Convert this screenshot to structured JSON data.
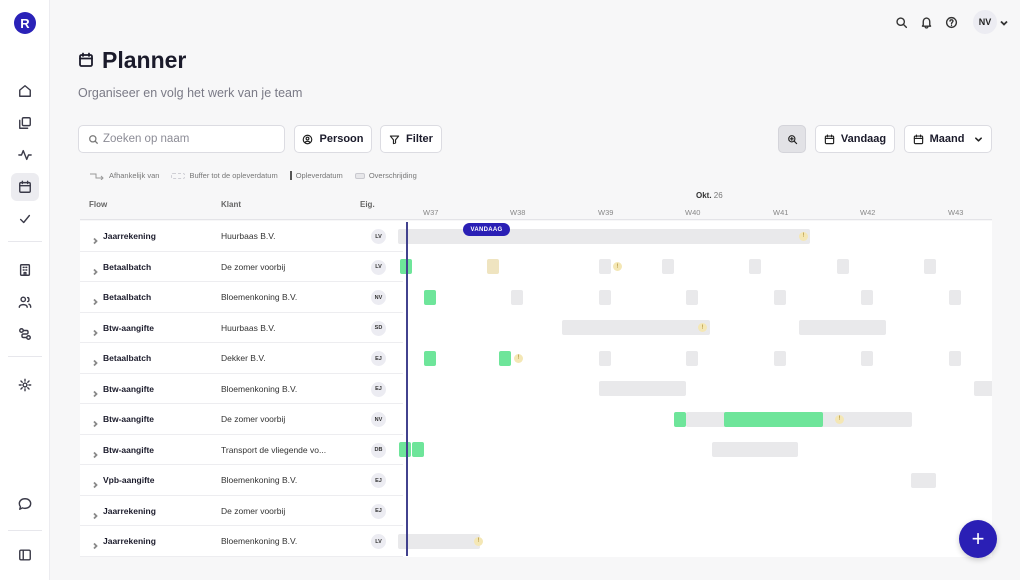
{
  "app": {
    "logo_letter": "R",
    "brand_color": "#2a1fb5"
  },
  "sidebar": {
    "items": [
      {
        "icon": "home-icon"
      },
      {
        "icon": "copy-icon"
      },
      {
        "icon": "activity-icon"
      },
      {
        "icon": "calendar-icon",
        "active": true
      },
      {
        "icon": "check-icon"
      },
      {
        "icon": "building-icon"
      },
      {
        "icon": "users-icon"
      },
      {
        "icon": "workflow-icon"
      },
      {
        "icon": "settings-icon"
      },
      {
        "icon": "chat-icon"
      },
      {
        "icon": "panel-icon"
      }
    ]
  },
  "topbar": {
    "user_initials": "NV"
  },
  "page": {
    "title": "Planner",
    "subtitle": "Organiseer en volg het werk van je team"
  },
  "toolbar": {
    "search_placeholder": "Zoeken op naam",
    "person_label": "Persoon",
    "filter_label": "Filter",
    "today_label": "Vandaag",
    "view_label": "Maand"
  },
  "legend": {
    "dependency": "Afhankelijk van",
    "buffer": "Buffer tot de opleverdatum",
    "deadline": "Opleverdatum",
    "overrun": "Overschrijding"
  },
  "table": {
    "headers": {
      "flow": "Flow",
      "client": "Klant",
      "owner": "Eig."
    },
    "month": {
      "name": "Okt.",
      "day": "26"
    },
    "weeks": [
      "W37",
      "W38",
      "W39",
      "W40",
      "W41",
      "W42",
      "W43"
    ],
    "today_badge": "VANDAAG",
    "rows": [
      {
        "flow": "Jaarrekening",
        "client": "Huurbaas B.V.",
        "owner": "LV"
      },
      {
        "flow": "Betaalbatch",
        "client": "De zomer voorbij",
        "owner": "LV"
      },
      {
        "flow": "Betaalbatch",
        "client": "Bloemenkoning B.V.",
        "owner": "NV"
      },
      {
        "flow": "Btw-aangifte",
        "client": "Huurbaas B.V.",
        "owner": "SD"
      },
      {
        "flow": "Betaalbatch",
        "client": "Dekker B.V.",
        "owner": "EJ"
      },
      {
        "flow": "Btw-aangifte",
        "client": "Bloemenkoning B.V.",
        "owner": "EJ"
      },
      {
        "flow": "Btw-aangifte",
        "client": "De zomer voorbij",
        "owner": "NV"
      },
      {
        "flow": "Btw-aangifte",
        "client": "Transport de vliegende vo...",
        "owner": "DB"
      },
      {
        "flow": "Vpb-aangifte",
        "client": "Bloemenkoning B.V.",
        "owner": "EJ"
      },
      {
        "flow": "Jaarrekening",
        "client": "De zomer voorbij",
        "owner": "EJ"
      },
      {
        "flow": "Jaarrekening",
        "client": "Bloemenkoning B.V.",
        "owner": "LV"
      }
    ]
  },
  "fab": {
    "label": "+"
  }
}
